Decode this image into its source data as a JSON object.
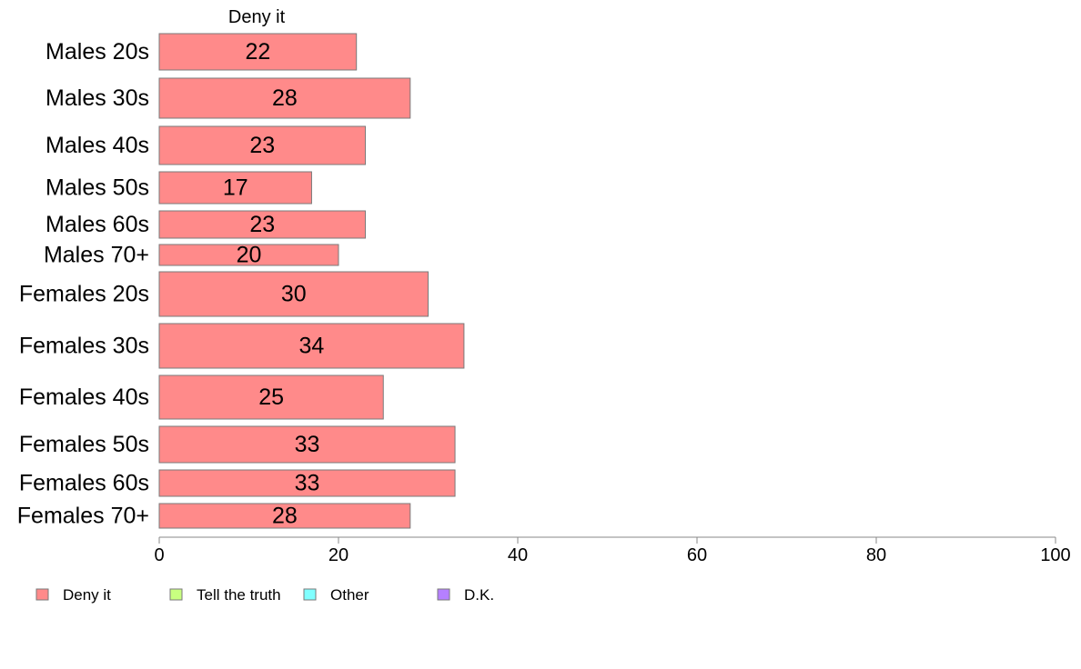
{
  "chart_data": {
    "type": "bar",
    "orientation": "horizontal",
    "title": "Deny it",
    "categories": [
      "Males 20s",
      "Males 30s",
      "Males 40s",
      "Males 50s",
      "Males 60s",
      "Males 70+",
      "Females 20s",
      "Females 30s",
      "Females 40s",
      "Females 50s",
      "Females 60s",
      "Females 70+"
    ],
    "series": [
      {
        "name": "Deny it",
        "color": "#ff8a8a",
        "values": [
          22,
          28,
          23,
          17,
          23,
          20,
          30,
          34,
          25,
          33,
          33,
          28
        ]
      }
    ],
    "xlim": [
      0,
      100
    ],
    "xticks": [
      0,
      20,
      40,
      60,
      80,
      100
    ],
    "grid": false,
    "legend_position": "bottom-left",
    "legend": [
      {
        "label": "Deny it",
        "color": "#ff8a8a"
      },
      {
        "label": "Tell the truth",
        "color": "#c8ff80"
      },
      {
        "label": "Other",
        "color": "#80ffff"
      },
      {
        "label": "D.K.",
        "color": "#b580ff"
      }
    ]
  }
}
